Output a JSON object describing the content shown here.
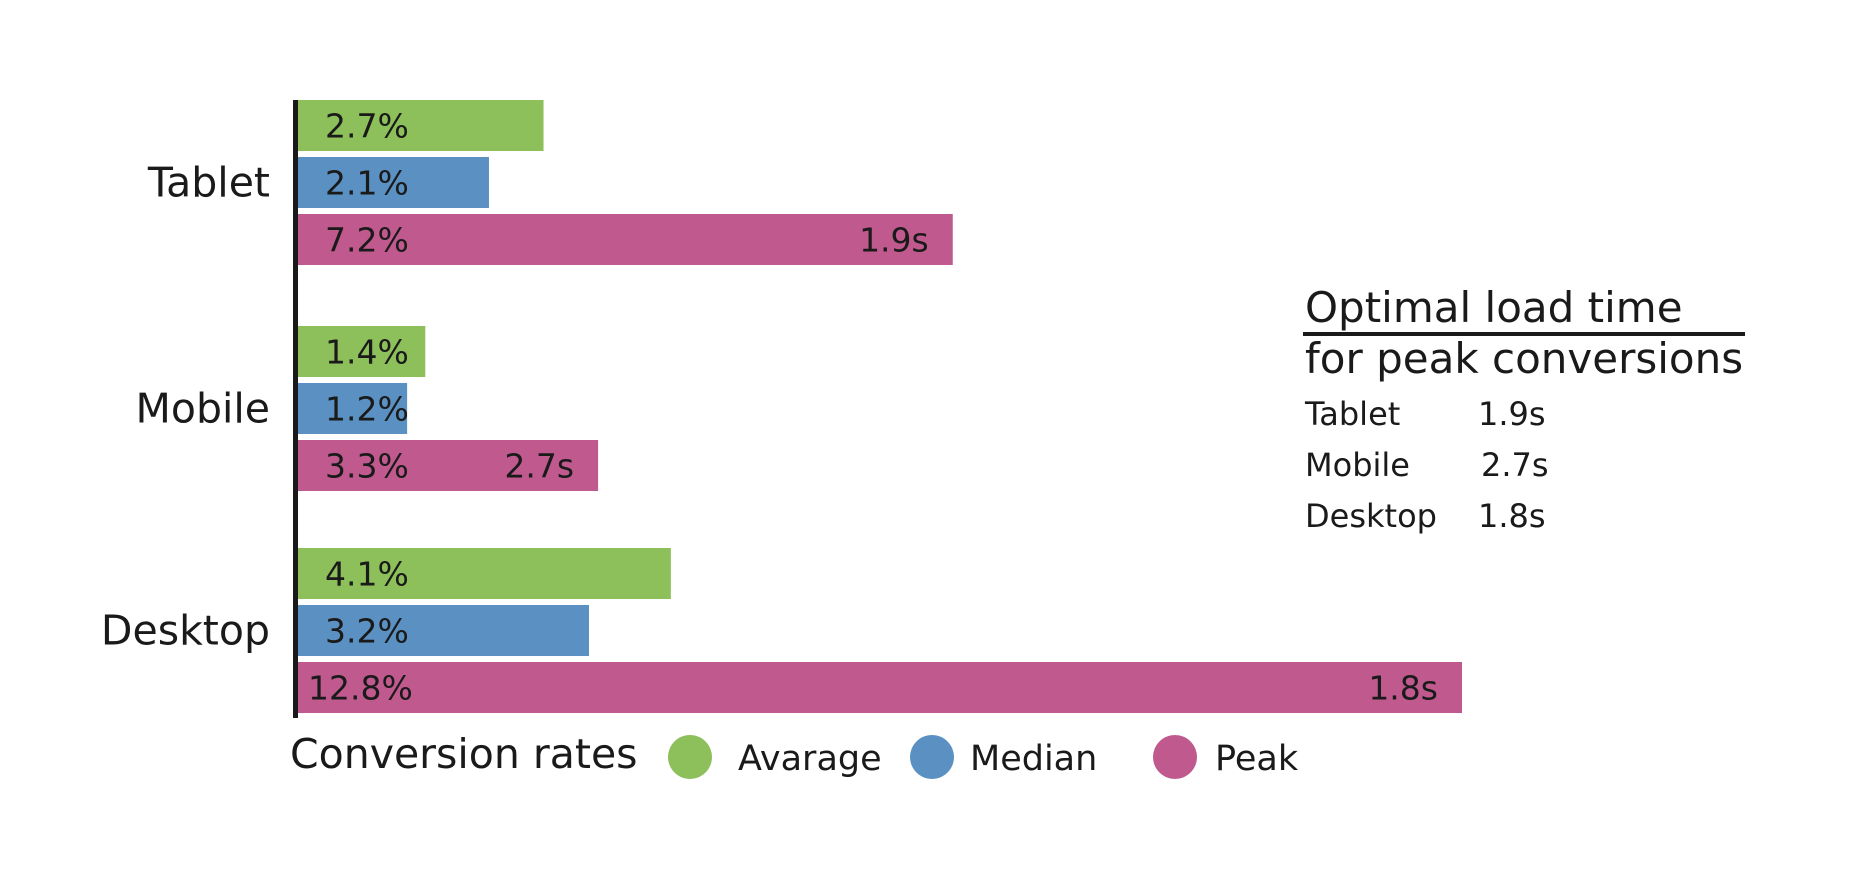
{
  "chart_data": {
    "type": "bar",
    "orientation": "horizontal",
    "categories": [
      "Tablet",
      "Mobile",
      "Desktop"
    ],
    "series": [
      {
        "name": "Avarage",
        "values": [
          2.7,
          1.4,
          4.1
        ],
        "labels": [
          "2.7%",
          "1.4%",
          "4.1%"
        ],
        "color": "#8dc05a"
      },
      {
        "name": "Median",
        "values": [
          2.1,
          1.2,
          3.2
        ],
        "labels": [
          "2.1%",
          "1.2%",
          "3.2%"
        ],
        "color": "#5b90c2"
      },
      {
        "name": "Peak",
        "values": [
          7.2,
          3.3,
          12.8
        ],
        "labels": [
          "7.2%",
          "3.3%",
          "12.8%"
        ],
        "color": "#c05a8e"
      }
    ],
    "peak_load_time_labels": [
      "1.9s",
      "2.7s",
      "1.8s"
    ],
    "legend": {
      "title": "Conversion rates",
      "position": "bottom"
    },
    "xlim": [
      0,
      12.8
    ],
    "grid": false
  },
  "side_panel": {
    "title_line1": "Optimal load time",
    "title_line2": "for peak conversions",
    "rows": [
      {
        "device": "Tablet",
        "time": "1.9s"
      },
      {
        "device": "Mobile",
        "time": "2.7s"
      },
      {
        "device": "Desktop",
        "time": "1.8s"
      }
    ]
  }
}
